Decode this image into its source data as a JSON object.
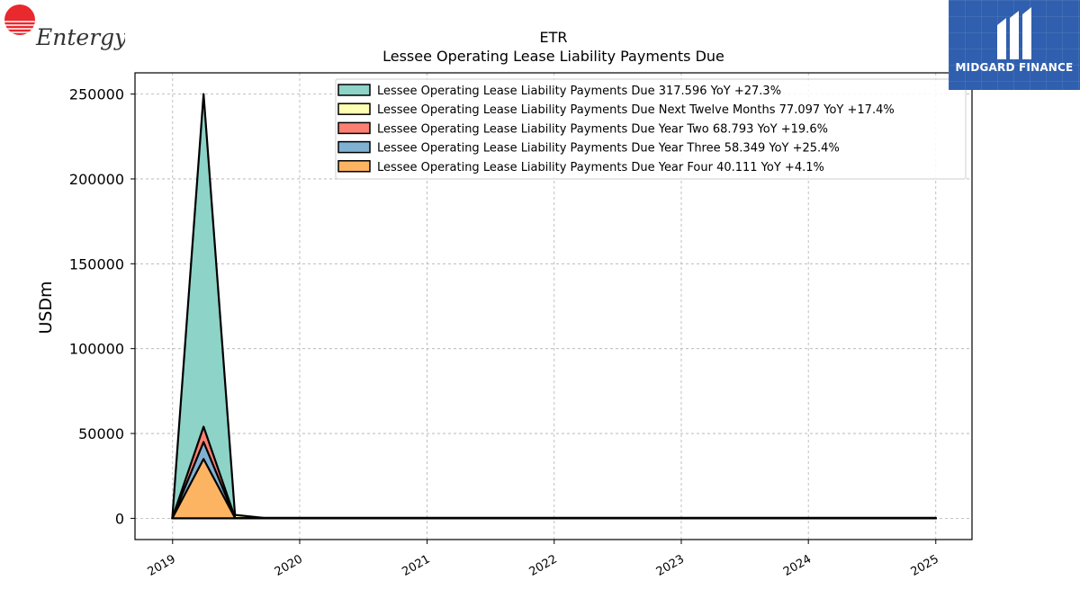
{
  "brand": {
    "left_logo_text": "Entergy",
    "badge_text": "MIDGARD FINANCE",
    "colors": {
      "entergy_red": "#e8292e",
      "midgard_blue": "#2f5fae"
    }
  },
  "chart_data": {
    "type": "area",
    "title": "ETR",
    "subtitle": "Lessee Operating Lease Liability Payments Due",
    "xlabel": "",
    "ylabel": "USDm",
    "x_ticks": [
      "2019",
      "2020",
      "2021",
      "2022",
      "2023",
      "2024",
      "2025"
    ],
    "y_ticks": [
      0,
      50000,
      100000,
      150000,
      200000,
      250000
    ],
    "xlim": [
      "2018-09-15",
      "2025-04-15"
    ],
    "ylim": [
      -12500,
      262500
    ],
    "grid": true,
    "legend_position": "top-right",
    "x": [
      "2018-12-31",
      "2019-03-31",
      "2019-06-30",
      "2019-09-30",
      "2025-01-01"
    ],
    "series": [
      {
        "name": "Lessee Operating Lease Liability Payments Due",
        "label": "Lessee Operating Lease Liability Payments Due  317.596 YoY +27.3%",
        "color": "#8dd3c7",
        "values": [
          0,
          250000,
          0,
          318,
          318
        ]
      },
      {
        "name": "Lessee Operating Lease Liability Payments Due Next Twelve Months",
        "label": "Lessee Operating Lease Liability Payments Due Next Twelve Months  77.097 YoY +17.4%",
        "color": "#ffffb3",
        "values": [
          0,
          2000,
          2000,
          77,
          77
        ]
      },
      {
        "name": "Lessee Operating Lease Liability Payments Due Year Two",
        "label": "Lessee Operating Lease Liability Payments Due Year Two  68.793 YoY +19.6%",
        "color": "#fb8072",
        "values": [
          0,
          54000,
          0,
          69,
          69
        ]
      },
      {
        "name": "Lessee Operating Lease Liability Payments Due Year Three",
        "label": "Lessee Operating Lease Liability Payments Due Year Three  58.349 YoY +25.4%",
        "color": "#80b1d3",
        "values": [
          0,
          45000,
          0,
          58,
          58
        ]
      },
      {
        "name": "Lessee Operating Lease Liability Payments Due Year Four",
        "label": "Lessee Operating Lease Liability Payments Due Year Four  40.111 YoY +4.1%",
        "color": "#fdb462",
        "values": [
          0,
          35000,
          0,
          40,
          40
        ]
      }
    ]
  }
}
